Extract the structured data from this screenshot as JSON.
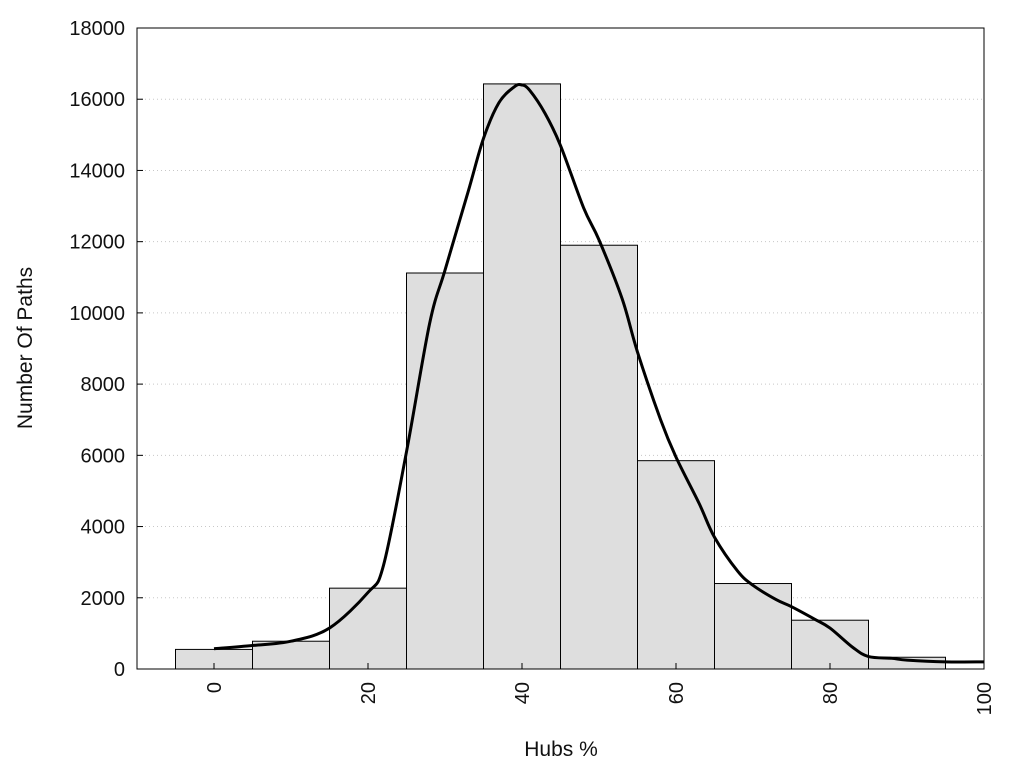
{
  "chart_data": {
    "type": "bar",
    "subtype": "histogram-with-density-curve",
    "xlabel": "Hubs %",
    "ylabel": "Number Of Paths",
    "xlim": [
      -10,
      100
    ],
    "ylim": [
      0,
      18000
    ],
    "bin_width": 10,
    "bins": [
      {
        "center": 0,
        "value": 550
      },
      {
        "center": 10,
        "value": 780
      },
      {
        "center": 20,
        "value": 2270
      },
      {
        "center": 30,
        "value": 11120
      },
      {
        "center": 40,
        "value": 16430
      },
      {
        "center": 50,
        "value": 11900
      },
      {
        "center": 60,
        "value": 5850
      },
      {
        "center": 70,
        "value": 2400
      },
      {
        "center": 80,
        "value": 1370
      },
      {
        "center": 90,
        "value": 330
      }
    ],
    "density_curve": {
      "x": [
        0,
        5,
        10,
        15,
        20,
        22,
        25,
        28,
        30,
        33,
        35,
        37,
        39,
        40,
        41,
        43,
        45,
        48,
        50,
        53,
        55,
        58,
        60,
        63,
        65,
        68,
        70,
        73,
        75,
        78,
        80,
        83,
        85,
        88,
        90,
        95,
        100
      ],
      "y": [
        570,
        660,
        780,
        1150,
        2150,
        2900,
        6100,
        9700,
        11200,
        13400,
        14900,
        15900,
        16350,
        16400,
        16250,
        15600,
        14700,
        12950,
        12050,
        10400,
        8900,
        7000,
        5950,
        4650,
        3700,
        2750,
        2350,
        1950,
        1750,
        1400,
        1150,
        600,
        350,
        300,
        250,
        200,
        200
      ]
    },
    "xticks": [
      {
        "value": 0,
        "label": "0"
      },
      {
        "value": 20,
        "label": "20"
      },
      {
        "value": 40,
        "label": "40"
      },
      {
        "value": 60,
        "label": "60"
      },
      {
        "value": 80,
        "label": "80"
      },
      {
        "value": 100,
        "label": "100"
      }
    ],
    "yticks": [
      {
        "value": 0,
        "label": "0"
      },
      {
        "value": 2000,
        "label": "2000"
      },
      {
        "value": 4000,
        "label": "4000"
      },
      {
        "value": 6000,
        "label": "6000"
      },
      {
        "value": 8000,
        "label": "8000"
      },
      {
        "value": 10000,
        "label": "10000"
      },
      {
        "value": 12000,
        "label": "12000"
      },
      {
        "value": 14000,
        "label": "14000"
      },
      {
        "value": 16000,
        "label": "16000"
      },
      {
        "value": 18000,
        "label": "18000"
      }
    ],
    "xtick_rotation": "vertical",
    "grid": "horizontal-dotted",
    "legend": "none",
    "colors": {
      "bar_fill": "#dedede",
      "bar_stroke": "#000000",
      "curve": "#000000",
      "grid": "#c8c8c8"
    }
  }
}
